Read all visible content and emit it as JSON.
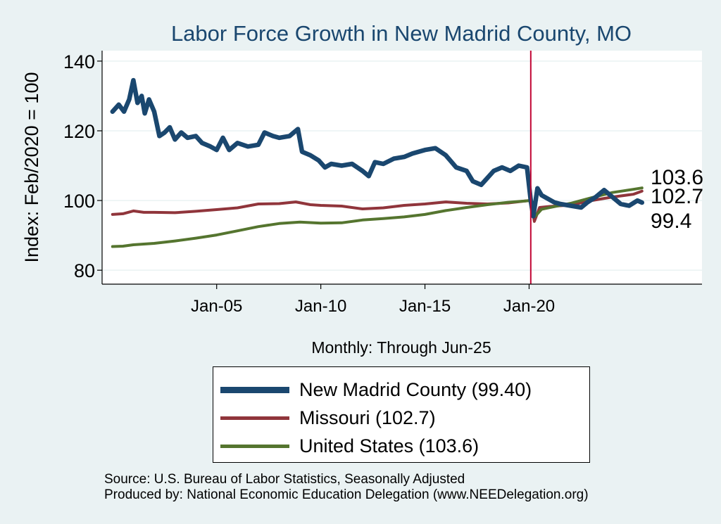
{
  "chart_data": {
    "type": "line",
    "title": "Labor Force Growth in New Madrid  County, MO",
    "xlabel": "Monthly: Through Jun-25",
    "ylabel": "Index: Feb/2020 = 100",
    "x_range": [
      1999.5,
      2028.3
    ],
    "ylim": [
      76,
      143
    ],
    "y_ticks": [
      80,
      100,
      120,
      140
    ],
    "x_ticks": [
      {
        "value": 2005.0,
        "label": "Jan-05"
      },
      {
        "value": 2010.0,
        "label": "Jan-10"
      },
      {
        "value": 2015.0,
        "label": "Jan-15"
      },
      {
        "value": 2020.0,
        "label": "Jan-20"
      }
    ],
    "reference_line_x": 2020.08,
    "end_labels": [
      "103.6",
      "102.7",
      "99.4"
    ],
    "series": [
      {
        "name": "New Madrid  County",
        "color": "#1a476f",
        "points": [
          [
            2000.0,
            125.5
          ],
          [
            2000.3,
            127.5
          ],
          [
            2000.55,
            125.5
          ],
          [
            2000.8,
            129.0
          ],
          [
            2001.0,
            134.5
          ],
          [
            2001.2,
            128.0
          ],
          [
            2001.4,
            130.0
          ],
          [
            2001.55,
            125.0
          ],
          [
            2001.75,
            129.0
          ],
          [
            2002.0,
            125.5
          ],
          [
            2002.25,
            118.5
          ],
          [
            2002.5,
            119.5
          ],
          [
            2002.75,
            121.0
          ],
          [
            2003.0,
            117.5
          ],
          [
            2003.3,
            119.5
          ],
          [
            2003.6,
            118.0
          ],
          [
            2004.0,
            118.5
          ],
          [
            2004.3,
            116.5
          ],
          [
            2004.7,
            115.5
          ],
          [
            2005.0,
            114.5
          ],
          [
            2005.3,
            118.0
          ],
          [
            2005.6,
            114.5
          ],
          [
            2006.0,
            116.5
          ],
          [
            2006.5,
            115.5
          ],
          [
            2007.0,
            116.0
          ],
          [
            2007.3,
            119.5
          ],
          [
            2007.7,
            118.5
          ],
          [
            2008.0,
            118.0
          ],
          [
            2008.5,
            118.5
          ],
          [
            2008.9,
            120.5
          ],
          [
            2009.1,
            114.0
          ],
          [
            2009.5,
            113.0
          ],
          [
            2009.9,
            111.5
          ],
          [
            2010.2,
            109.5
          ],
          [
            2010.5,
            110.5
          ],
          [
            2011.0,
            110.0
          ],
          [
            2011.5,
            110.5
          ],
          [
            2012.0,
            108.5
          ],
          [
            2012.3,
            107.0
          ],
          [
            2012.6,
            111.0
          ],
          [
            2013.0,
            110.5
          ],
          [
            2013.5,
            112.0
          ],
          [
            2014.0,
            112.5
          ],
          [
            2014.4,
            113.5
          ],
          [
            2015.0,
            114.5
          ],
          [
            2015.5,
            115.0
          ],
          [
            2016.0,
            113.0
          ],
          [
            2016.5,
            109.5
          ],
          [
            2017.0,
            108.5
          ],
          [
            2017.3,
            105.5
          ],
          [
            2017.7,
            104.5
          ],
          [
            2018.0,
            106.5
          ],
          [
            2018.3,
            108.5
          ],
          [
            2018.7,
            109.5
          ],
          [
            2019.1,
            108.5
          ],
          [
            2019.5,
            110.0
          ],
          [
            2019.9,
            109.5
          ],
          [
            2020.08,
            100.0
          ],
          [
            2020.2,
            95.5
          ],
          [
            2020.4,
            103.5
          ],
          [
            2020.6,
            101.5
          ],
          [
            2020.9,
            100.5
          ],
          [
            2021.2,
            99.5
          ],
          [
            2021.5,
            99.0
          ],
          [
            2022.0,
            98.5
          ],
          [
            2022.5,
            98.0
          ],
          [
            2022.8,
            99.5
          ],
          [
            2023.2,
            101.0
          ],
          [
            2023.6,
            103.0
          ],
          [
            2024.0,
            101.0
          ],
          [
            2024.4,
            99.0
          ],
          [
            2024.8,
            98.5
          ],
          [
            2025.2,
            100.0
          ],
          [
            2025.42,
            99.4
          ]
        ]
      },
      {
        "name": "Missouri",
        "color": "#90353b",
        "points": [
          [
            2000.0,
            96.0
          ],
          [
            2000.5,
            96.2
          ],
          [
            2001.0,
            97.0
          ],
          [
            2001.5,
            96.6
          ],
          [
            2002.0,
            96.6
          ],
          [
            2003.0,
            96.5
          ],
          [
            2004.0,
            96.9
          ],
          [
            2005.0,
            97.4
          ],
          [
            2006.0,
            97.9
          ],
          [
            2007.0,
            99.0
          ],
          [
            2008.0,
            99.1
          ],
          [
            2008.8,
            99.6
          ],
          [
            2009.5,
            98.8
          ],
          [
            2010.0,
            98.6
          ],
          [
            2011.0,
            98.4
          ],
          [
            2012.0,
            97.6
          ],
          [
            2013.0,
            97.9
          ],
          [
            2014.0,
            98.6
          ],
          [
            2015.0,
            99.0
          ],
          [
            2016.0,
            99.6
          ],
          [
            2017.0,
            99.2
          ],
          [
            2018.0,
            99.0
          ],
          [
            2019.0,
            99.3
          ],
          [
            2020.0,
            100.0
          ],
          [
            2020.08,
            100.0
          ],
          [
            2020.25,
            94.0
          ],
          [
            2020.5,
            98.0
          ],
          [
            2021.0,
            98.3
          ],
          [
            2022.0,
            98.7
          ],
          [
            2023.0,
            100.0
          ],
          [
            2024.0,
            101.0
          ],
          [
            2025.0,
            101.8
          ],
          [
            2025.42,
            102.7
          ]
        ]
      },
      {
        "name": "United States",
        "color": "#55752f",
        "points": [
          [
            2000.0,
            86.8
          ],
          [
            2000.5,
            86.9
          ],
          [
            2001.0,
            87.3
          ],
          [
            2002.0,
            87.7
          ],
          [
            2003.0,
            88.4
          ],
          [
            2004.0,
            89.2
          ],
          [
            2005.0,
            90.1
          ],
          [
            2006.0,
            91.3
          ],
          [
            2007.0,
            92.5
          ],
          [
            2008.0,
            93.4
          ],
          [
            2009.0,
            93.8
          ],
          [
            2010.0,
            93.5
          ],
          [
            2011.0,
            93.6
          ],
          [
            2012.0,
            94.4
          ],
          [
            2013.0,
            94.8
          ],
          [
            2014.0,
            95.3
          ],
          [
            2015.0,
            96.0
          ],
          [
            2016.0,
            97.1
          ],
          [
            2017.0,
            98.0
          ],
          [
            2018.0,
            98.8
          ],
          [
            2019.0,
            99.5
          ],
          [
            2020.08,
            100.0
          ],
          [
            2020.3,
            95.5
          ],
          [
            2020.6,
            97.5
          ],
          [
            2021.0,
            98.0
          ],
          [
            2022.0,
            99.2
          ],
          [
            2023.0,
            100.8
          ],
          [
            2024.0,
            102.3
          ],
          [
            2025.0,
            103.2
          ],
          [
            2025.42,
            103.6
          ]
        ]
      }
    ]
  },
  "legend": {
    "items": [
      {
        "label": "New Madrid  County (99.40)",
        "color": "#1a476f"
      },
      {
        "label": "Missouri (102.7)",
        "color": "#90353b"
      },
      {
        "label": "United States (103.6)",
        "color": "#55752f"
      }
    ]
  },
  "footer": {
    "source": "Source: U.S. Bureau of Labor Statistics, Seasonally Adjusted",
    "produced_by": "Produced by: National Economic Education Delegation (www.NEEDelegation.org)"
  }
}
